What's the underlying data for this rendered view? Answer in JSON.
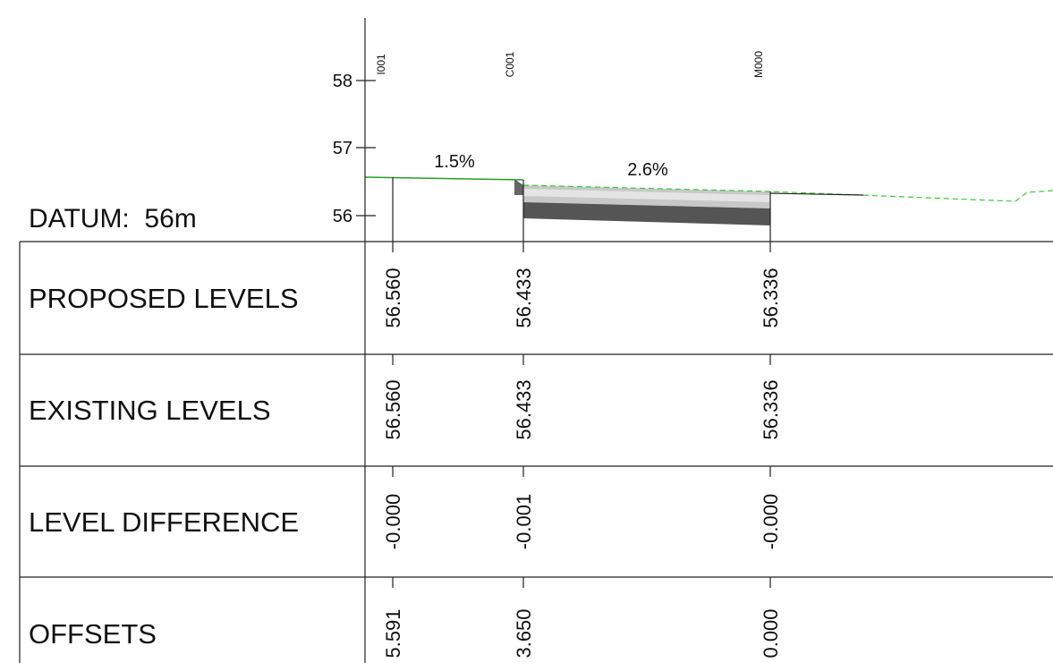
{
  "datum": "DATUM:  56m",
  "axis": {
    "ticks": [
      "56",
      "57",
      "58"
    ]
  },
  "stations": [
    "I001",
    "C001",
    "M000"
  ],
  "grades": [
    "1.5%",
    "2.6%"
  ],
  "table": {
    "rows": [
      {
        "label": "PROPOSED LEVELS",
        "values": [
          "56.560",
          "56.433",
          "56.336"
        ]
      },
      {
        "label": "EXISTING LEVELS",
        "values": [
          "56.560",
          "56.433",
          "56.336"
        ]
      },
      {
        "label": "LEVEL DIFFERENCE",
        "values": [
          "-0.000",
          "-0.001",
          "-0.000"
        ]
      },
      {
        "label": "OFFSETS",
        "values": [
          "5.591",
          "3.650",
          "0.000"
        ]
      }
    ]
  }
}
